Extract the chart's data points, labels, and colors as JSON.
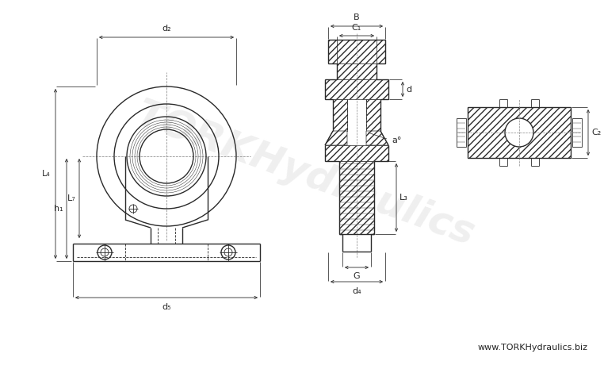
{
  "bg_color": "#ffffff",
  "line_color": "#2a2a2a",
  "dim_color": "#2a2a2a",
  "watermark_color": "#cccccc",
  "watermark_text": "TORKHydraulics",
  "website_text": "www.TORKHydraulics.biz",
  "labels": {
    "d2": "d₂",
    "d5": "d₅",
    "L4": "L₄",
    "L7": "L₇",
    "h1": "h₁",
    "B": "B",
    "C1": "C₁",
    "d": "d",
    "L3": "L₃",
    "G": "G",
    "d4": "d₄",
    "C2": "C₂",
    "a": "a°"
  },
  "font_size_dim": 8,
  "font_size_watermark": 36,
  "font_size_website": 8
}
